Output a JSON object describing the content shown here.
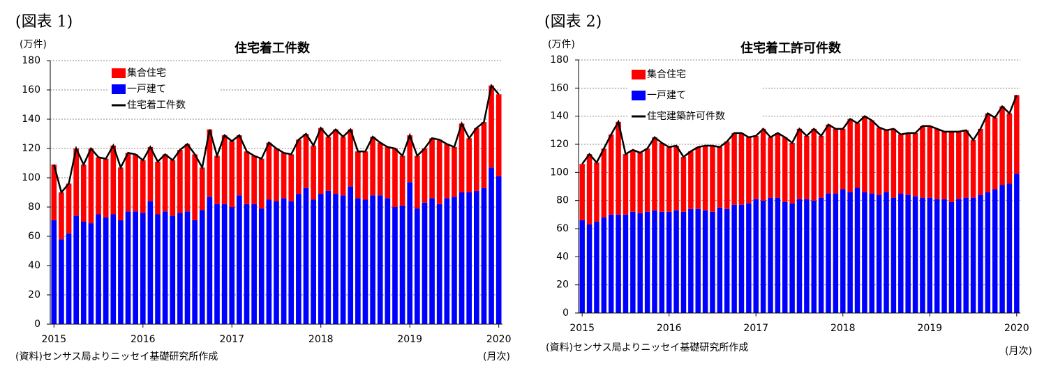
{
  "chart_data": [
    {
      "type": "bar",
      "figure_label": "(図表 1)",
      "title": "住宅着工件数",
      "unit_label": "(万件)",
      "source": "(資料)センサス局よりニッセイ基礎研究所作成",
      "x_unit": "(月次)",
      "categories": [
        "2015",
        null,
        null,
        null,
        null,
        null,
        null,
        null,
        null,
        null,
        null,
        null,
        "2016",
        null,
        null,
        null,
        null,
        null,
        null,
        null,
        null,
        null,
        null,
        null,
        "2017",
        null,
        null,
        null,
        null,
        null,
        null,
        null,
        null,
        null,
        null,
        null,
        "2018",
        null,
        null,
        null,
        null,
        null,
        null,
        null,
        null,
        null,
        null,
        null,
        "2019",
        null,
        null,
        null,
        null,
        null,
        null,
        null,
        null,
        null,
        null,
        null,
        "2020"
      ],
      "series": [
        {
          "name": "集合住宅",
          "type": "bar",
          "color": "#ff0000",
          "values": [
            38,
            32,
            34,
            46,
            39,
            51,
            39,
            40,
            47,
            36,
            40,
            39,
            36,
            37,
            36,
            39,
            38,
            43,
            46,
            45,
            29,
            46,
            33,
            47,
            45,
            41,
            36,
            33,
            34,
            39,
            36,
            31,
            32,
            37,
            37,
            37,
            45,
            37,
            44,
            40,
            39,
            32,
            33,
            40,
            36,
            35,
            40,
            34,
            32,
            36,
            37,
            41,
            44,
            37,
            34,
            47,
            37,
            43,
            45,
            56,
            56
          ]
        },
        {
          "name": "一戸建て",
          "type": "bar",
          "color": "#0000ff",
          "values": [
            71,
            58,
            62,
            74,
            70,
            69,
            75,
            73,
            75,
            71,
            77,
            77,
            76,
            84,
            75,
            77,
            74,
            76,
            77,
            71,
            78,
            87,
            82,
            82,
            80,
            88,
            82,
            82,
            79,
            85,
            84,
            86,
            84,
            89,
            93,
            85,
            89,
            91,
            89,
            88,
            94,
            86,
            85,
            88,
            88,
            86,
            80,
            81,
            97,
            79,
            83,
            86,
            82,
            86,
            87,
            90,
            90,
            91,
            93,
            107,
            101
          ]
        },
        {
          "name": "住宅着工件数",
          "type": "line",
          "color": "#000000",
          "values": [
            109,
            90,
            96,
            120,
            109,
            120,
            114,
            113,
            122,
            107,
            117,
            116,
            112,
            121,
            111,
            116,
            112,
            119,
            123,
            116,
            107,
            133,
            115,
            129,
            125,
            129,
            118,
            115,
            113,
            124,
            120,
            117,
            116,
            126,
            130,
            122,
            134,
            128,
            133,
            128,
            133,
            118,
            118,
            128,
            124,
            121,
            120,
            115,
            129,
            115,
            120,
            127,
            126,
            123,
            121,
            137,
            127,
            134,
            138,
            163,
            157
          ]
        }
      ],
      "ylim": [
        0,
        180
      ],
      "yticks": [
        0,
        20,
        40,
        60,
        80,
        100,
        120,
        140,
        160,
        180
      ],
      "grid": true,
      "legend": "upper left",
      "stacked": true
    },
    {
      "type": "bar",
      "figure_label": "(図表 2)",
      "title": "住宅着工許可件数",
      "unit_label": "(万件)",
      "source": "(資料)センサス局よりニッセイ基礎研究所作成",
      "x_unit": "(月次)",
      "categories": [
        "2015",
        null,
        null,
        null,
        null,
        null,
        null,
        null,
        null,
        null,
        null,
        null,
        "2016",
        null,
        null,
        null,
        null,
        null,
        null,
        null,
        null,
        null,
        null,
        null,
        "2017",
        null,
        null,
        null,
        null,
        null,
        null,
        null,
        null,
        null,
        null,
        null,
        "2018",
        null,
        null,
        null,
        null,
        null,
        null,
        null,
        null,
        null,
        null,
        null,
        "2019",
        null,
        null,
        null,
        null,
        null,
        null,
        null,
        null,
        null,
        null,
        null,
        "2020"
      ],
      "series": [
        {
          "name": "集合住宅",
          "type": "bar",
          "color": "#ff0000",
          "values": [
            40,
            50,
            42,
            49,
            57,
            66,
            43,
            44,
            43,
            45,
            52,
            49,
            46,
            46,
            39,
            41,
            44,
            46,
            47,
            43,
            48,
            51,
            51,
            47,
            45,
            51,
            43,
            46,
            46,
            43,
            50,
            45,
            51,
            44,
            49,
            46,
            43,
            52,
            46,
            54,
            52,
            48,
            44,
            49,
            42,
            44,
            45,
            51,
            51,
            50,
            48,
            50,
            48,
            48,
            41,
            47,
            56,
            51,
            56,
            50,
            56
          ]
        },
        {
          "name": "一戸建て",
          "type": "bar",
          "color": "#0000ff",
          "values": [
            66,
            63,
            65,
            68,
            70,
            70,
            70,
            72,
            71,
            72,
            73,
            72,
            72,
            73,
            72,
            74,
            74,
            73,
            72,
            75,
            74,
            77,
            77,
            78,
            81,
            80,
            82,
            82,
            79,
            78,
            81,
            81,
            80,
            82,
            85,
            85,
            88,
            86,
            89,
            86,
            85,
            84,
            86,
            82,
            85,
            84,
            83,
            82,
            82,
            81,
            81,
            79,
            81,
            82,
            82,
            84,
            86,
            88,
            91,
            92,
            99
          ]
        },
        {
          "name": "住宅建築許可件数",
          "type": "line",
          "color": "#000000",
          "values": [
            106,
            113,
            107,
            117,
            127,
            136,
            113,
            116,
            114,
            117,
            125,
            121,
            118,
            119,
            111,
            115,
            118,
            119,
            119,
            118,
            122,
            128,
            128,
            125,
            126,
            131,
            125,
            128,
            125,
            121,
            131,
            126,
            131,
            126,
            134,
            131,
            131,
            138,
            135,
            140,
            137,
            132,
            130,
            131,
            127,
            128,
            128,
            133,
            133,
            131,
            129,
            129,
            129,
            130,
            123,
            131,
            142,
            139,
            147,
            142,
            155
          ]
        }
      ],
      "ylim": [
        0,
        180
      ],
      "yticks": [
        0,
        20,
        40,
        60,
        80,
        100,
        120,
        140,
        160,
        180
      ],
      "grid": true,
      "legend": "upper left",
      "stacked": true
    }
  ]
}
